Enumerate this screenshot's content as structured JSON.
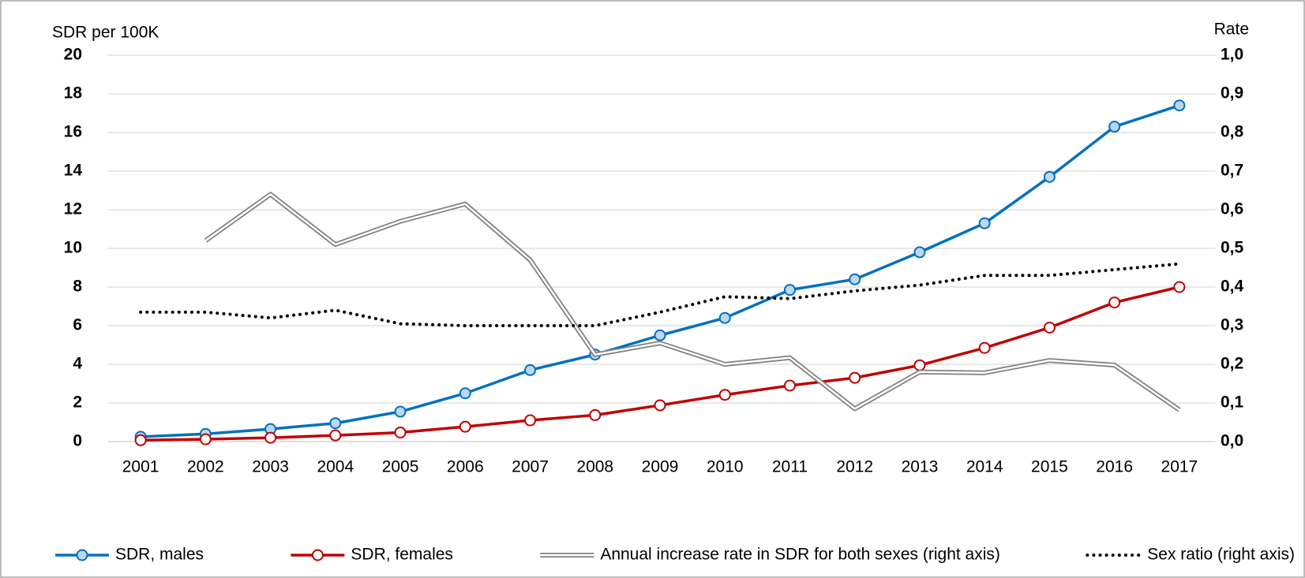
{
  "chart_data": {
    "type": "line",
    "y_label": "SDR per 100K",
    "y2_label": "Rate",
    "categories": [
      "2001",
      "2002",
      "2003",
      "2004",
      "2005",
      "2006",
      "2007",
      "2008",
      "2009",
      "2010",
      "2011",
      "2012",
      "2013",
      "2014",
      "2015",
      "2016",
      "2017"
    ],
    "series": [
      {
        "name": "SDR, males",
        "color": "#0070c0",
        "marker_fill": "#bdd7ee",
        "style": "solid",
        "values": [
          0.25,
          0.4,
          0.65,
          0.95,
          1.55,
          2.5,
          3.7,
          4.5,
          5.5,
          6.4,
          7.85,
          8.4,
          9.8,
          11.3,
          13.7,
          16.3,
          17.4
        ]
      },
      {
        "name": "SDR, females",
        "color": "#c00000",
        "marker_fill": "#ffffff",
        "style": "solid",
        "values": [
          0.07,
          0.12,
          0.2,
          0.32,
          0.47,
          0.77,
          1.1,
          1.37,
          1.88,
          2.42,
          2.9,
          3.3,
          3.95,
          4.85,
          5.9,
          7.2,
          8.0
        ]
      },
      {
        "name": "Annual increase rate in SDR for both sexes (right axis)",
        "color": "#808080",
        "style": "double",
        "axis": "y2",
        "values": [
          null,
          0.52,
          0.64,
          0.51,
          0.57,
          0.615,
          0.47,
          0.225,
          0.255,
          0.2,
          0.217,
          0.085,
          0.18,
          0.178,
          0.21,
          0.198,
          0.082
        ]
      },
      {
        "name": "Sex ratio (right axis)",
        "color": "#000000",
        "style": "dotted",
        "axis": "y2",
        "values": [
          0.335,
          0.335,
          0.32,
          0.34,
          0.305,
          0.3,
          0.3,
          0.3,
          0.335,
          0.375,
          0.37,
          0.39,
          0.405,
          0.43,
          0.43,
          0.445,
          0.46
        ]
      }
    ],
    "ylim": [
      0,
      20
    ],
    "yticks": [
      0,
      2,
      4,
      6,
      8,
      10,
      12,
      14,
      16,
      18,
      20
    ],
    "y2lim": [
      0,
      1
    ],
    "y2ticks": [
      {
        "value": 0,
        "label": "0,0"
      },
      {
        "value": 0.1,
        "label": "0,1"
      },
      {
        "value": 0.2,
        "label": "0,2"
      },
      {
        "value": 0.3,
        "label": "0,3"
      },
      {
        "value": 0.4,
        "label": "0,4"
      },
      {
        "value": 0.5,
        "label": "0,5"
      },
      {
        "value": 0.6,
        "label": "0,6"
      },
      {
        "value": 0.7,
        "label": "0,7"
      },
      {
        "value": 0.8,
        "label": "0,8"
      },
      {
        "value": 0.9,
        "label": "0,9"
      },
      {
        "value": 1,
        "label": "1,0"
      }
    ],
    "grid": true,
    "legend": "bottom"
  }
}
